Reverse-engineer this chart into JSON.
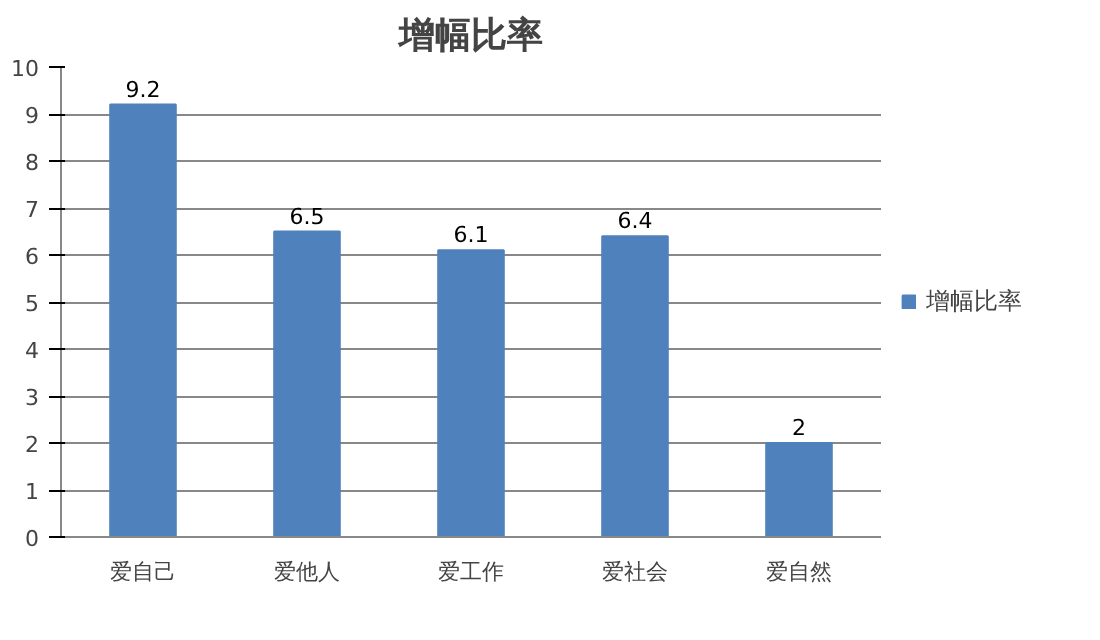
{
  "chart_data": {
    "type": "bar",
    "title": "增幅比率",
    "categories": [
      "爱自己",
      "爱他人",
      "爱工作",
      "爱社会",
      "爱自然"
    ],
    "series": [
      {
        "name": "增幅比率",
        "color": "#4f81bd",
        "values": [
          9.2,
          6.5,
          6.1,
          6.4,
          2
        ]
      }
    ],
    "ylim": [
      0,
      10
    ],
    "yticks": [
      0,
      1,
      2,
      3,
      4,
      5,
      6,
      7,
      8,
      9,
      10
    ],
    "grid": "y",
    "legend": "right",
    "data_labels": true
  }
}
